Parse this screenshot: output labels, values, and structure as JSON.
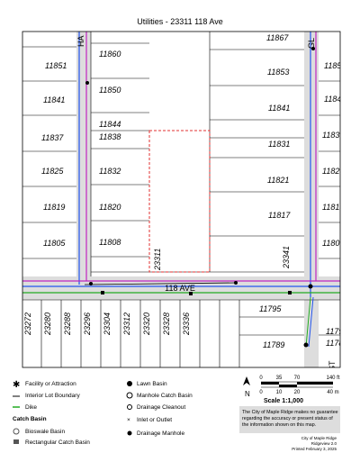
{
  "title": "Utilities - 23311 118 Ave",
  "map": {
    "lots": [
      "11851",
      "11841",
      "11837",
      "11825",
      "11819",
      "11805",
      "11860",
      "11850",
      "11844",
      "11838",
      "11832",
      "11820",
      "11808",
      "11867",
      "11853",
      "11841",
      "11831",
      "11821",
      "11817",
      "1185",
      "1184",
      "1183",
      "1182",
      "1181",
      "1180",
      "11795",
      "11789",
      "1179",
      "1178"
    ],
    "rotated_lots": [
      "23311",
      "23341",
      "23272",
      "23280",
      "23288",
      "23296",
      "23304",
      "23312",
      "23320",
      "23328",
      "23336"
    ],
    "streets": [
      "HA",
      "GL",
      "118 AVE",
      "ST"
    ]
  },
  "scale": {
    "ft_ticks": [
      "0",
      "35",
      "70",
      "140 ft"
    ],
    "m_ticks": [
      "0",
      "10",
      "20",
      "40 m"
    ],
    "north": "N",
    "ratio": "Scale 1:1,000"
  },
  "disclaimer": "The City of Maple Ridge makes no guarantee regarding the accuracy or present status of the information shown on this map.",
  "footer": [
    "City of Maple Ridge",
    "Ridgeview 2.0",
    "Printed February 3, 2025"
  ],
  "legend": {
    "left": [
      "Facility or Attraction",
      "Interior Lot Boundary",
      "Dike"
    ],
    "heading": "Catch Basin",
    "left_sub": [
      "Bioswale Basin",
      "Rectangular Catch Basin"
    ],
    "right": [
      "Lawn Basin",
      "Manhole Catch Basin",
      "Drainage Cleanout",
      "Inlet or Outlet",
      "Drainage Manhole"
    ]
  }
}
